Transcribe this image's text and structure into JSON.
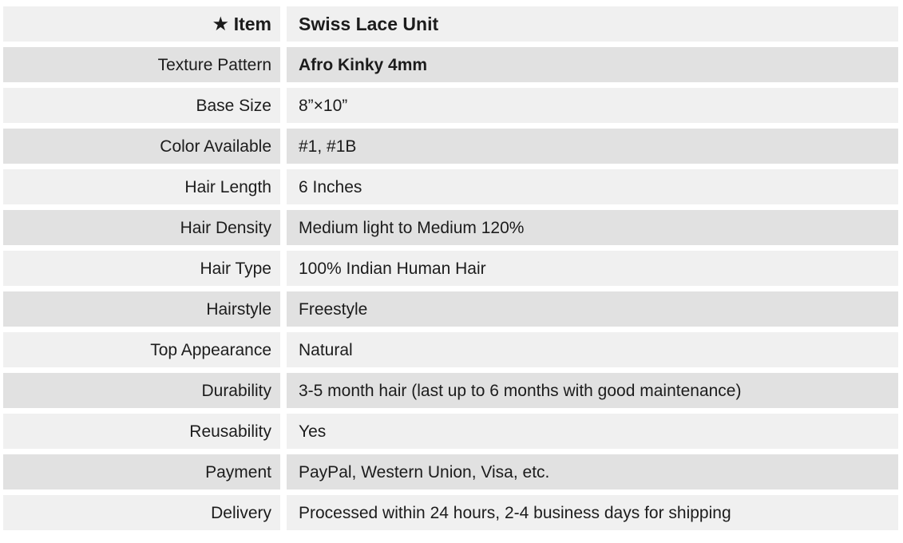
{
  "theme": {
    "row_light": "#f0f0f0",
    "row_dark": "#e1e1e1",
    "text_color": "#1c1c1c",
    "page_background": "#ffffff"
  },
  "table": {
    "header": {
      "star_icon": "★",
      "label": "Item",
      "value": "Swiss Lace Unit"
    },
    "rows": [
      {
        "label": "Texture Pattern",
        "value": "Afro Kinky 4mm",
        "value_bold": true
      },
      {
        "label": "Base Size",
        "value": "8”×10”"
      },
      {
        "label": "Color Available",
        "value": "#1, #1B"
      },
      {
        "label": "Hair Length",
        "value": "6 Inches"
      },
      {
        "label": "Hair Density",
        "value": "Medium light to Medium 120%"
      },
      {
        "label": "Hair Type",
        "value": "100% Indian Human Hair"
      },
      {
        "label": "Hairstyle",
        "value": "Freestyle"
      },
      {
        "label": "Top Appearance",
        "value": "Natural"
      },
      {
        "label": "Durability",
        "value": "3-5 month hair (last up to 6 months with good maintenance)"
      },
      {
        "label": "Reusability",
        "value": "Yes"
      },
      {
        "label": "Payment",
        "value": "PayPal, Western Union, Visa, etc."
      },
      {
        "label": "Delivery",
        "value": "Processed within 24 hours, 2-4 business days for shipping"
      }
    ]
  }
}
